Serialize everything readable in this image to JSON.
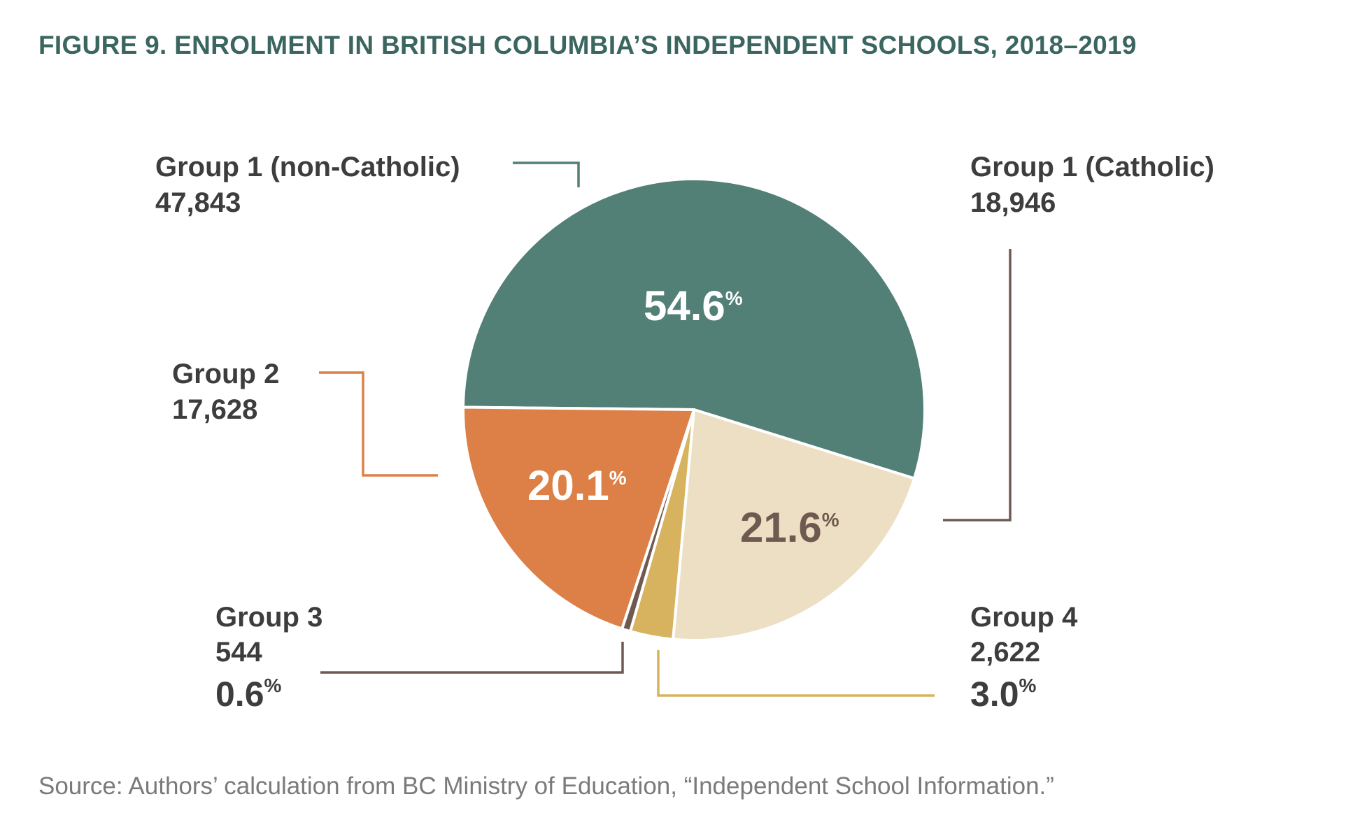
{
  "chart_data": {
    "type": "pie",
    "title": "FIGURE 9. ENROLMENT IN BRITISH COLUMBIA’S INDEPENDENT SCHOOLS, 2018–2019",
    "source": "Source: Authors’ calculation from BC Ministry of Education, “Independent School Information.”",
    "percent_symbol": "%",
    "colors": {
      "title": "#3b6660",
      "text": "#3d3d3d",
      "slice_text_light": "#ffffff",
      "slice_text_dark": "#6e5a50"
    },
    "slices": [
      {
        "name": "Group 1 (non-Catholic)",
        "count": "47,843",
        "value": 54.6,
        "pct_label": "54.6",
        "color": "#527f76",
        "leader_color": "#527f76"
      },
      {
        "name": "Group 1 (Catholic)",
        "count": "18,946",
        "value": 21.6,
        "pct_label": "21.6",
        "color": "#ecdfc3",
        "leader_color": "#6e5a50"
      },
      {
        "name": "Group 4",
        "count": "2,622",
        "value": 3.0,
        "pct_label": "3.0",
        "color": "#d8b35f",
        "leader_color": "#d8b35f"
      },
      {
        "name": "Group 3",
        "count": "544",
        "value": 0.6,
        "pct_label": "0.6",
        "color": "#6e5a50",
        "leader_color": "#6e5a50"
      },
      {
        "name": "Group 2",
        "count": "17,628",
        "value": 20.1,
        "pct_label": "20.1",
        "color": "#dd8047",
        "leader_color": "#dd8047"
      }
    ]
  }
}
